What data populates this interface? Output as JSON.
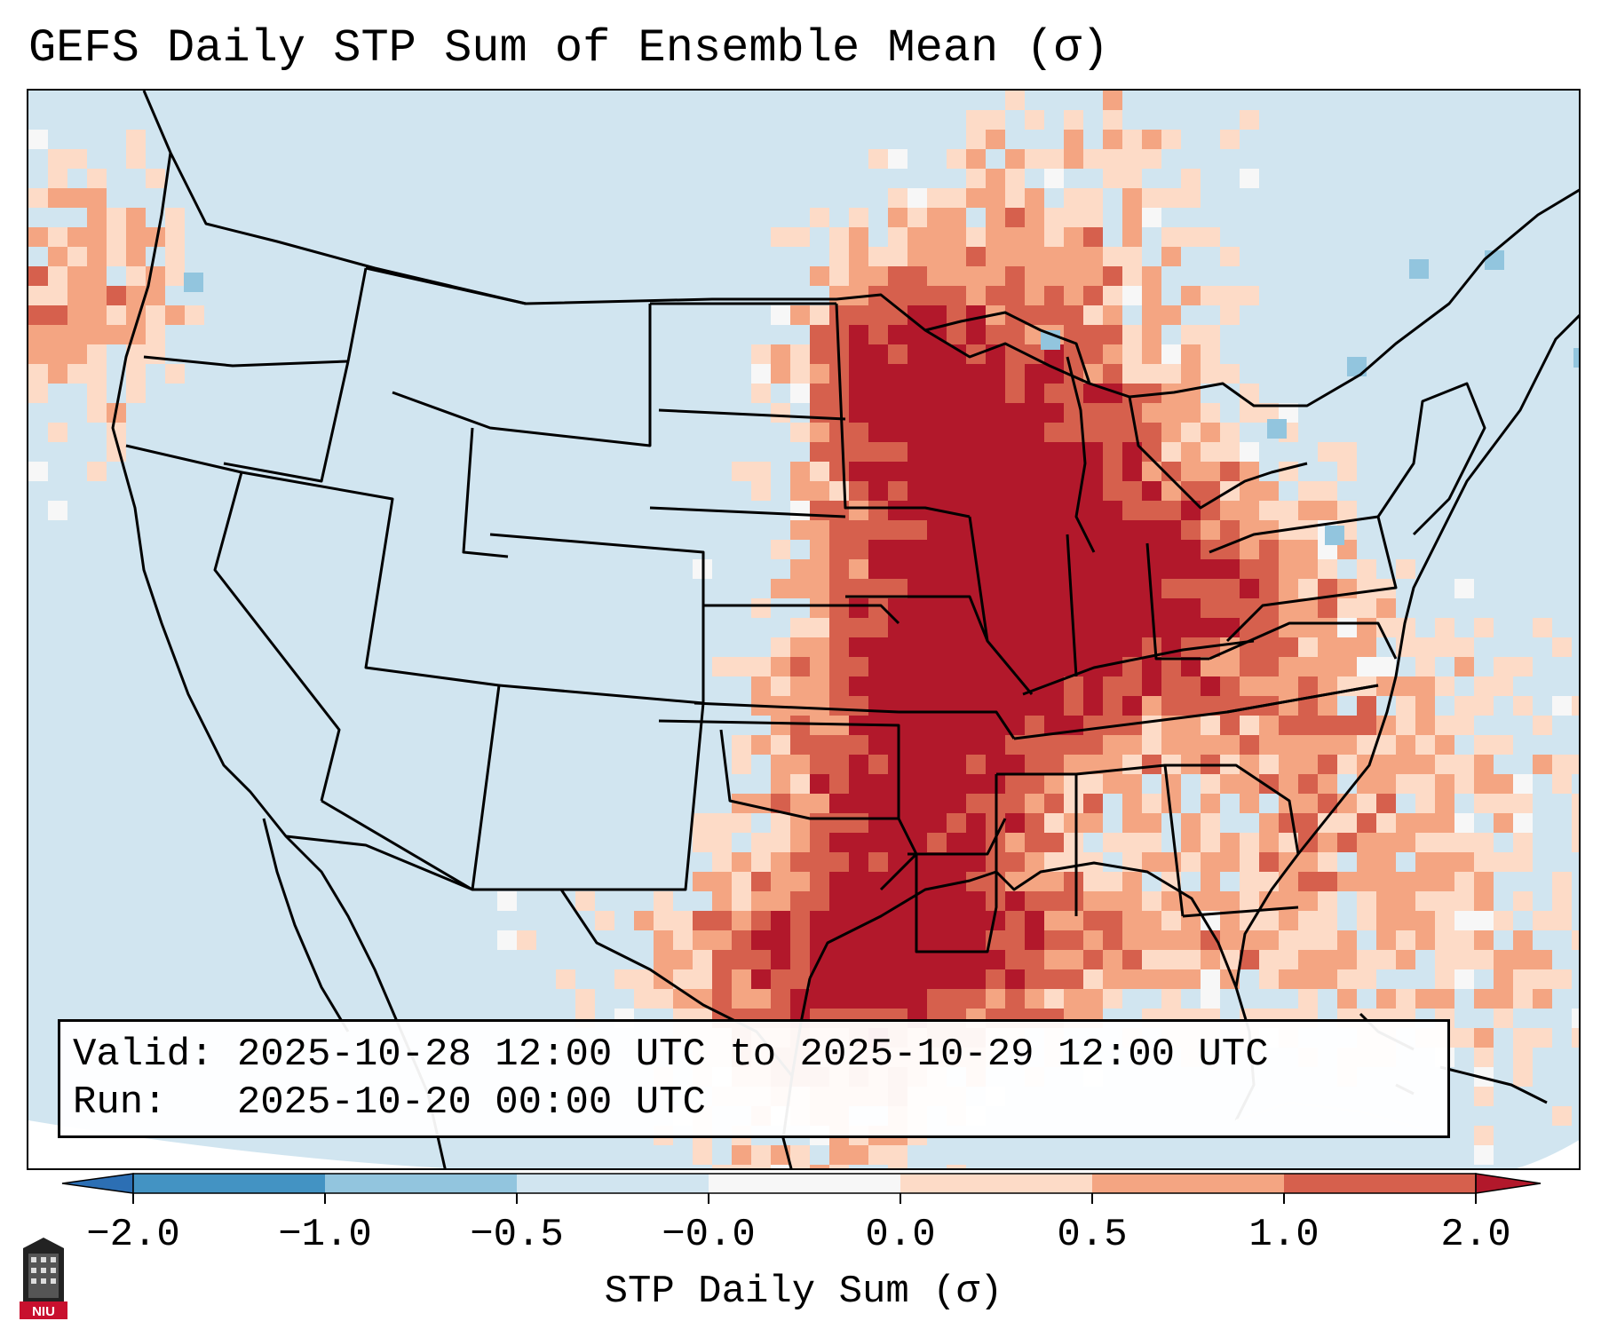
{
  "title": "GEFS Daily STP Sum of Ensemble Mean (σ)",
  "info": {
    "valid": "Valid: 2025-10-28 12:00 UTC to 2025-10-29 12:00 UTC",
    "run": "Run:   2025-10-20 00:00 UTC"
  },
  "colorbar": {
    "title": "STP Daily Sum (σ)",
    "tick_labels": [
      "−2.0",
      "−1.0",
      "−0.5",
      "−0.0",
      "0.0",
      "0.5",
      "1.0",
      "2.0"
    ],
    "bins": [
      {
        "color": "#2c6fb4"
      },
      {
        "color": "#4393c3"
      },
      {
        "color": "#92c5de"
      },
      {
        "color": "#d1e5f0"
      },
      {
        "color": "#f7f7f7"
      },
      {
        "color": "#fddbc7"
      },
      {
        "color": "#f4a582"
      },
      {
        "color": "#d6604d"
      },
      {
        "color": "#b2182b"
      }
    ]
  },
  "map": {
    "background_color": "#d1e5f0",
    "highlight_colors": {
      "strong": "#b2182b",
      "moderate": "#d6604d",
      "weak": "#f4a582",
      "faint": "#fddbc7",
      "neutral": "#f7f7f7",
      "negative": "#92c5de"
    },
    "boundary_color": "#000000"
  },
  "logo": {
    "text": "NIU",
    "icon": "university-building-icon"
  }
}
